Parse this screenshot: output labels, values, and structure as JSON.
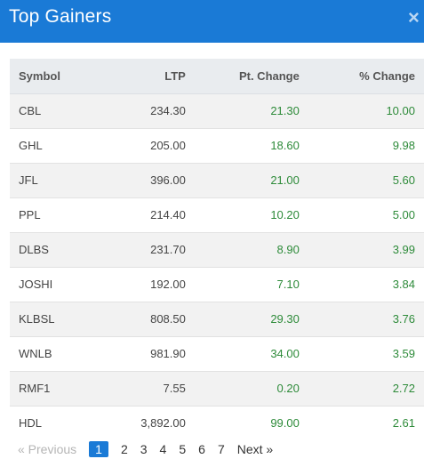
{
  "modal": {
    "title": "Top Gainers",
    "close_label": "×"
  },
  "table": {
    "headers": [
      "Symbol",
      "LTP",
      "Pt. Change",
      "% Change"
    ],
    "rows": [
      [
        "CBL",
        "234.30",
        "21.30",
        "10.00"
      ],
      [
        "GHL",
        "205.00",
        "18.60",
        "9.98"
      ],
      [
        "JFL",
        "396.00",
        "21.00",
        "5.60"
      ],
      [
        "PPL",
        "214.40",
        "10.20",
        "5.00"
      ],
      [
        "DLBS",
        "231.70",
        "8.90",
        "3.99"
      ],
      [
        "JOSHI",
        "192.00",
        "7.10",
        "3.84"
      ],
      [
        "KLBSL",
        "808.50",
        "29.30",
        "3.76"
      ],
      [
        "WNLB",
        "981.90",
        "34.00",
        "3.59"
      ],
      [
        "RMF1",
        "7.55",
        "0.20",
        "2.72"
      ],
      [
        "HDL",
        "3,892.00",
        "99.00",
        "2.61"
      ]
    ]
  },
  "pagination": {
    "previous": "« Previous",
    "pages": [
      "1",
      "2",
      "3",
      "4",
      "5",
      "6",
      "7"
    ],
    "active_page": "1",
    "next": "Next »"
  },
  "colors": {
    "header_bg": "#1a7ad6",
    "positive": "#2e8b3a"
  }
}
